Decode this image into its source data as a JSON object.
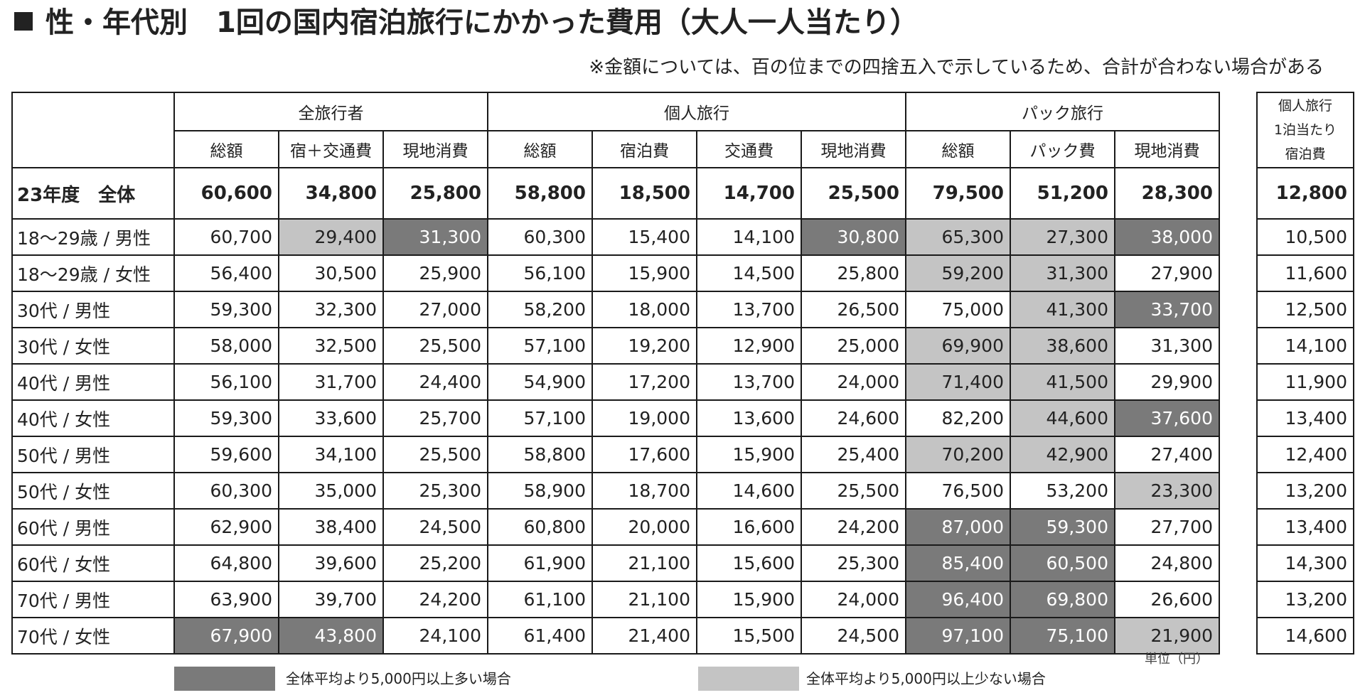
{
  "title": "性・年代別　1回の国内宿泊旅行にかかった費用（大人一人当たり）",
  "note": "※金額については、百の位までの四捨五入で示しているため、合計が合わない場合がある",
  "groups": {
    "all": "全旅行者",
    "individual": "個人旅行",
    "package": "パック旅行"
  },
  "headers": [
    "総額",
    "宿＋交通費",
    "現地消費",
    "総額",
    "宿泊費",
    "交通費",
    "現地消費",
    "総額",
    "パック費",
    "現地消費"
  ],
  "side_header": [
    "個人旅行",
    "1泊当たり",
    "宿泊費"
  ],
  "total_row": {
    "label": "23年度　全体",
    "values": [
      "60,600",
      "34,800",
      "25,800",
      "58,800",
      "18,500",
      "14,700",
      "25,500",
      "79,500",
      "51,200",
      "28,300"
    ],
    "side": "12,800"
  },
  "rows": [
    {
      "label": "18～29歳 / 男性",
      "values": [
        "60,700",
        "29,400",
        "31,300",
        "60,300",
        "15,400",
        "14,100",
        "30,800",
        "65,300",
        "27,300",
        "38,000"
      ],
      "side": "10,500",
      "shade": [
        "",
        "L",
        "D",
        "",
        "",
        "",
        "D",
        "L",
        "L",
        "D"
      ]
    },
    {
      "label": "18～29歳 / 女性",
      "values": [
        "56,400",
        "30,500",
        "25,900",
        "56,100",
        "15,900",
        "14,500",
        "25,800",
        "59,200",
        "31,300",
        "27,900"
      ],
      "side": "11,600",
      "shade": [
        "",
        "",
        "",
        "",
        "",
        "",
        "",
        "L",
        "L",
        ""
      ]
    },
    {
      "label": "30代 / 男性",
      "values": [
        "59,300",
        "32,300",
        "27,000",
        "58,200",
        "18,000",
        "13,700",
        "26,500",
        "75,000",
        "41,300",
        "33,700"
      ],
      "side": "12,500",
      "shade": [
        "",
        "",
        "",
        "",
        "",
        "",
        "",
        "",
        "L",
        "D"
      ]
    },
    {
      "label": "30代 / 女性",
      "values": [
        "58,000",
        "32,500",
        "25,500",
        "57,100",
        "19,200",
        "12,900",
        "25,000",
        "69,900",
        "38,600",
        "31,300"
      ],
      "side": "14,100",
      "shade": [
        "",
        "",
        "",
        "",
        "",
        "",
        "",
        "L",
        "L",
        ""
      ]
    },
    {
      "label": "40代 / 男性",
      "values": [
        "56,100",
        "31,700",
        "24,400",
        "54,900",
        "17,200",
        "13,700",
        "24,000",
        "71,400",
        "41,500",
        "29,900"
      ],
      "side": "11,900",
      "shade": [
        "",
        "",
        "",
        "",
        "",
        "",
        "",
        "L",
        "L",
        ""
      ]
    },
    {
      "label": "40代 / 女性",
      "values": [
        "59,300",
        "33,600",
        "25,700",
        "57,100",
        "19,000",
        "13,600",
        "24,600",
        "82,200",
        "44,600",
        "37,600"
      ],
      "side": "13,400",
      "shade": [
        "",
        "",
        "",
        "",
        "",
        "",
        "",
        "",
        "L",
        "D"
      ]
    },
    {
      "label": "50代 / 男性",
      "values": [
        "59,600",
        "34,100",
        "25,500",
        "58,800",
        "17,600",
        "15,900",
        "25,400",
        "70,200",
        "42,900",
        "27,400"
      ],
      "side": "12,400",
      "shade": [
        "",
        "",
        "",
        "",
        "",
        "",
        "",
        "L",
        "L",
        ""
      ]
    },
    {
      "label": "50代 / 女性",
      "values": [
        "60,300",
        "35,000",
        "25,300",
        "58,900",
        "18,700",
        "14,600",
        "25,500",
        "76,500",
        "53,200",
        "23,300"
      ],
      "side": "13,200",
      "shade": [
        "",
        "",
        "",
        "",
        "",
        "",
        "",
        "",
        "",
        "L"
      ]
    },
    {
      "label": "60代 / 男性",
      "values": [
        "62,900",
        "38,400",
        "24,500",
        "60,800",
        "20,000",
        "16,600",
        "24,200",
        "87,000",
        "59,300",
        "27,700"
      ],
      "side": "13,400",
      "shade": [
        "",
        "",
        "",
        "",
        "",
        "",
        "",
        "D",
        "D",
        ""
      ]
    },
    {
      "label": "60代 / 女性",
      "values": [
        "64,800",
        "39,600",
        "25,200",
        "61,900",
        "21,100",
        "15,600",
        "25,300",
        "85,400",
        "60,500",
        "24,800"
      ],
      "side": "14,300",
      "shade": [
        "",
        "",
        "",
        "",
        "",
        "",
        "",
        "D",
        "D",
        ""
      ]
    },
    {
      "label": "70代 / 男性",
      "values": [
        "63,900",
        "39,700",
        "24,200",
        "61,100",
        "21,100",
        "15,900",
        "24,000",
        "96,400",
        "69,800",
        "26,600"
      ],
      "side": "13,200",
      "shade": [
        "",
        "",
        "",
        "",
        "",
        "",
        "",
        "D",
        "D",
        ""
      ]
    },
    {
      "label": "70代 / 女性",
      "values": [
        "67,900",
        "43,800",
        "24,100",
        "61,400",
        "21,400",
        "15,500",
        "24,500",
        "97,100",
        "75,100",
        "21,900"
      ],
      "side": "14,600",
      "shade": [
        "D",
        "D",
        "",
        "",
        "",
        "",
        "",
        "D",
        "D",
        "L"
      ]
    }
  ],
  "unit": "単位（円）",
  "legend": {
    "dark_label": "全体平均より5,000円以上多い場合",
    "light_label": "全体平均より5,000円以上少ない場合"
  },
  "colors": {
    "dark_shade": "#7a7a7a",
    "light_shade": "#c4c4c4"
  }
}
